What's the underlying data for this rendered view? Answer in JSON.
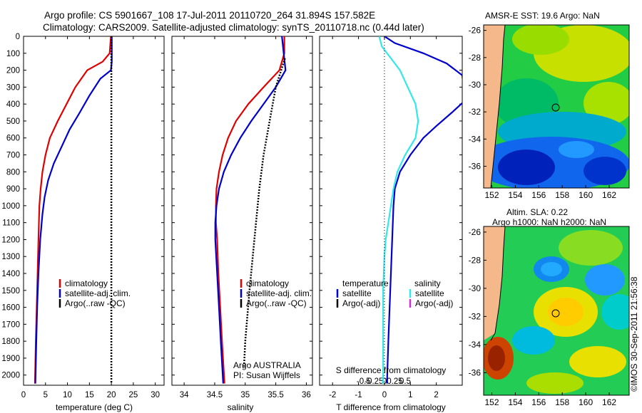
{
  "header": {
    "title_line1": "Argo profile: CS 5901667_108 17-Jul-2011 20110720_264 31.894S 157.582E",
    "title_line2": "Climatology: CARS2009. Satellite-adjusted climatology: synTS_20110718.nc (0.44d later)"
  },
  "colors": {
    "climatology": "#e00000",
    "satellite": "#0000cc",
    "argo": "#000000",
    "sal_satellite": "#33e8e8",
    "argo_adj": "#cc33cc",
    "land": "#f5b88a"
  },
  "depth_axis": {
    "ticks": [
      0,
      100,
      200,
      300,
      400,
      500,
      600,
      700,
      800,
      900,
      1000,
      1100,
      1200,
      1300,
      1400,
      1500,
      1600,
      1700,
      1800,
      1900,
      2000
    ],
    "range": [
      0,
      2060
    ],
    "inverted": true
  },
  "chart_data": [
    {
      "type": "line",
      "id": "temperature",
      "xlabel": "temperature (deg C)",
      "ylabel": "",
      "xlim": [
        0,
        32
      ],
      "xticks": [
        0,
        5,
        10,
        15,
        20,
        25,
        30
      ],
      "legend": [
        "climatology",
        "satellite-adj. clim.",
        "Argo(..raw -QC)"
      ],
      "series": [
        {
          "name": "climatology",
          "color": "#e00000",
          "style": "solid",
          "points": [
            [
              19.9,
              0
            ],
            [
              19.6,
              100
            ],
            [
              18,
              150
            ],
            [
              14.5,
              200
            ],
            [
              11.8,
              300
            ],
            [
              9.8,
              400
            ],
            [
              7.8,
              500
            ],
            [
              6,
              600
            ],
            [
              5,
              700
            ],
            [
              4.3,
              800
            ],
            [
              3.9,
              900
            ],
            [
              3.6,
              1000
            ],
            [
              3.4,
              1200
            ],
            [
              3.2,
              1400
            ],
            [
              3,
              1600
            ],
            [
              2.8,
              1800
            ],
            [
              2.6,
              2050
            ]
          ]
        },
        {
          "name": "satellite-adj. clim.",
          "color": "#0000cc",
          "style": "solid",
          "points": [
            [
              20.1,
              0
            ],
            [
              20.1,
              100
            ],
            [
              20.1,
              150
            ],
            [
              19.9,
              200
            ],
            [
              17.5,
              250
            ],
            [
              15,
              350
            ],
            [
              12.8,
              450
            ],
            [
              10.5,
              550
            ],
            [
              8.7,
              650
            ],
            [
              6.9,
              750
            ],
            [
              5.6,
              850
            ],
            [
              4.8,
              950
            ],
            [
              4.3,
              1050
            ],
            [
              3.8,
              1200
            ],
            [
              3.4,
              1400
            ],
            [
              3.1,
              1600
            ],
            [
              2.9,
              1800
            ],
            [
              2.7,
              2050
            ]
          ]
        },
        {
          "name": "Argo(..raw -QC)",
          "color": "#000000",
          "style": "dotted",
          "points": [
            [
              20.0,
              0
            ],
            [
              20.0,
              2050
            ]
          ]
        }
      ]
    },
    {
      "type": "line",
      "id": "salinity",
      "xlabel": "salinity",
      "ylabel": "",
      "xlim": [
        33.8,
        36.1
      ],
      "xticks": [
        34,
        34.5,
        35,
        35.5,
        36
      ],
      "xticklabels": [
        "34",
        "34.5",
        "35",
        "35.5",
        "36"
      ],
      "legend": [
        "climatology",
        "satellite-adj. clim.",
        "Argo(..raw -QC)"
      ],
      "annotation": [
        "Argo AUSTRALIA",
        "PI: Susan Wijffels"
      ],
      "series": [
        {
          "name": "climatology",
          "color": "#e00000",
          "style": "solid",
          "points": [
            [
              35.64,
              0
            ],
            [
              35.64,
              100
            ],
            [
              35.56,
              200
            ],
            [
              35.3,
              300
            ],
            [
              35.05,
              400
            ],
            [
              34.85,
              500
            ],
            [
              34.72,
              600
            ],
            [
              34.63,
              700
            ],
            [
              34.57,
              800
            ],
            [
              34.53,
              900
            ],
            [
              34.52,
              1000
            ],
            [
              34.52,
              1100
            ],
            [
              34.54,
              1200
            ],
            [
              34.56,
              1400
            ],
            [
              34.59,
              1600
            ],
            [
              34.62,
              1800
            ],
            [
              34.66,
              2050
            ]
          ]
        },
        {
          "name": "satellite-adj. clim.",
          "color": "#0000cc",
          "style": "solid",
          "points": [
            [
              35.6,
              0
            ],
            [
              35.63,
              100
            ],
            [
              35.66,
              200
            ],
            [
              35.5,
              300
            ],
            [
              35.3,
              400
            ],
            [
              35.1,
              500
            ],
            [
              34.92,
              600
            ],
            [
              34.77,
              700
            ],
            [
              34.65,
              800
            ],
            [
              34.57,
              900
            ],
            [
              34.53,
              1000
            ],
            [
              34.51,
              1100
            ],
            [
              34.51,
              1200
            ],
            [
              34.54,
              1400
            ],
            [
              34.57,
              1600
            ],
            [
              34.6,
              1800
            ],
            [
              34.64,
              2050
            ]
          ]
        },
        {
          "name": "Argo(..raw -QC)",
          "color": "#000000",
          "style": "dotted",
          "points": [
            [
              35.65,
              130
            ],
            [
              35.5,
              300
            ],
            [
              35.4,
              500
            ],
            [
              35.3,
              700
            ],
            [
              35.23,
              900
            ],
            [
              35.15,
              1200
            ],
            [
              35.07,
              1500
            ],
            [
              35.0,
              1800
            ],
            [
              34.98,
              1950
            ]
          ]
        }
      ]
    },
    {
      "type": "line",
      "id": "difference",
      "xlabel": "T difference from climatology",
      "x2label": "S difference from climatology",
      "xlim": [
        -2.5,
        3
      ],
      "xticks": [
        -2,
        -1,
        0,
        1,
        2
      ],
      "xticklabels": [
        "-2",
        "-1",
        "0",
        "1",
        "2"
      ],
      "x2ticks": [
        -0.5,
        -0.25,
        0,
        0.25,
        0.5
      ],
      "x2ticklabels": [
        "-0.5",
        "-0.25",
        "0",
        "0.25",
        "0.5"
      ],
      "legend_left_title": "temperature",
      "legend_right_title": "salinity",
      "legend": [
        "satellite",
        "Argo(-adj)",
        "satellite",
        "Argo(-adj)"
      ],
      "series": [
        {
          "name": "temperature satellite",
          "color": "#0000cc",
          "style": "solid",
          "points": [
            [
              0,
              0
            ],
            [
              0.4,
              40
            ],
            [
              1.5,
              100
            ],
            [
              2.4,
              160
            ],
            [
              3.0,
              230
            ],
            [
              3.05,
              300
            ],
            [
              3.1,
              380
            ],
            [
              2.6,
              450
            ],
            [
              2.0,
              530
            ],
            [
              1.5,
              600
            ],
            [
              1.0,
              700
            ],
            [
              0.6,
              800
            ],
            [
              0.4,
              900
            ],
            [
              0.35,
              1000
            ],
            [
              0.3,
              1200
            ],
            [
              0.25,
              1400
            ],
            [
              0.2,
              1600
            ],
            [
              0.15,
              1800
            ],
            [
              0.1,
              2050
            ]
          ]
        },
        {
          "name": "salinity satellite",
          "color": "#33e8e8",
          "style": "solid",
          "points": [
            [
              -0.2,
              0
            ],
            [
              -0.1,
              60
            ],
            [
              0.2,
              120
            ],
            [
              0.6,
              200
            ],
            [
              0.9,
              300
            ],
            [
              1.2,
              400
            ],
            [
              1.3,
              500
            ],
            [
              1.2,
              600
            ],
            [
              0.8,
              700
            ],
            [
              0.5,
              800
            ],
            [
              0.35,
              900
            ],
            [
              0.25,
              1000
            ],
            [
              0.15,
              1100
            ],
            [
              0.05,
              1200
            ],
            [
              0.0,
              1300
            ],
            [
              -0.05,
              1500
            ],
            [
              -0.05,
              1800
            ],
            [
              -0.05,
              2050
            ]
          ]
        },
        {
          "name": "zero line",
          "color": "#000000",
          "style": "dotted",
          "points": [
            [
              0,
              0
            ],
            [
              0,
              2050
            ]
          ]
        }
      ]
    }
  ],
  "maps": [
    {
      "title": "AMSR-E SST: 19.6 Argo: NaN",
      "title2": "",
      "lon_ticks": [
        152,
        154,
        156,
        158,
        160,
        162
      ],
      "lat_ticks": [
        -26,
        -28,
        -30,
        -32,
        -34,
        -36
      ],
      "marker": {
        "lon": 157.582,
        "lat": -31.894
      }
    },
    {
      "title": "Altim. SLA: 0.22",
      "title2": "Argo h1000: NaN h2000: NaN",
      "lon_ticks": [
        152,
        154,
        156,
        158,
        160,
        162
      ],
      "lat_ticks": [
        -26,
        -28,
        -30,
        -32,
        -34,
        -36
      ],
      "marker": {
        "lon": 157.582,
        "lat": -31.894
      }
    }
  ],
  "stamp": "©IMOS 30-Sep-2011 21:56:38"
}
